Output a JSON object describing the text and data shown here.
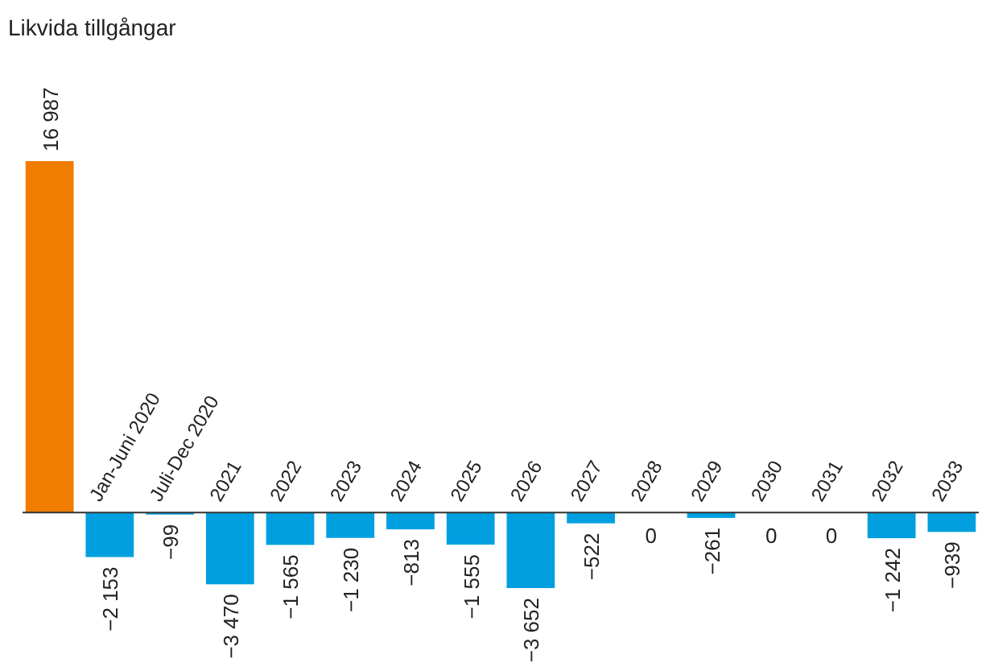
{
  "chart_data": {
    "type": "bar",
    "title": "Likvida tillgångar",
    "categories": [
      null,
      "Jan-Juni 2020",
      "Juli-Dec 2020",
      "2021",
      "2022",
      "2023",
      "2024",
      "2025",
      "2026",
      "2027",
      "2028",
      "2029",
      "2030",
      "2031",
      "2032",
      "2033"
    ],
    "values": [
      16987,
      -2153,
      -99,
      -3470,
      -1565,
      -1230,
      -813,
      -1555,
      -3652,
      -522,
      0,
      -261,
      0,
      0,
      -1242,
      -939
    ],
    "colors": [
      "#f07d00",
      "#00a0e0",
      "#00a0e0",
      "#00a0e0",
      "#00a0e0",
      "#00a0e0",
      "#00a0e0",
      "#00a0e0",
      "#00a0e0",
      "#00a0e0",
      "#00a0e0",
      "#00a0e0",
      "#00a0e0",
      "#00a0e0",
      "#00a0e0",
      "#00a0e0"
    ],
    "value_labels": [
      "16 987",
      "−2 153",
      "−99",
      "−3 470",
      "−1 565",
      "−1 230",
      "−813",
      "−1 555",
      "−3 652",
      "−522",
      "0",
      "−261",
      "0",
      "0",
      "−1 242",
      "−939"
    ]
  }
}
